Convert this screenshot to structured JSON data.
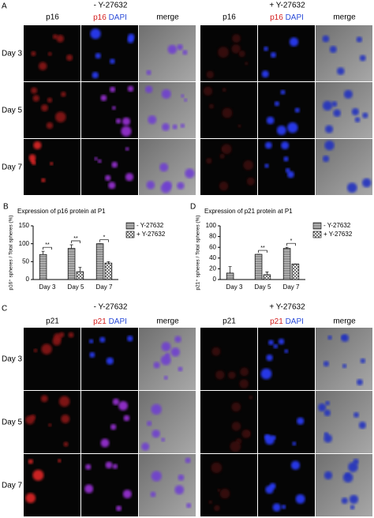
{
  "panel_a": {
    "letter": "A",
    "groups": [
      "- Y-27632",
      "+ Y-27632"
    ],
    "marker": "p16",
    "stain": "DAPI",
    "merge": "merge",
    "days": [
      "Day 3",
      "Day 5",
      "Day 7"
    ]
  },
  "panel_c": {
    "letter": "C",
    "groups": [
      "- Y-27632",
      "+ Y-27632"
    ],
    "marker": "p21",
    "stain": "DAPI",
    "merge": "merge",
    "days": [
      "Day 3",
      "Day 5",
      "Day 7"
    ]
  },
  "chart_data": [
    {
      "type": "bar",
      "panel": "B",
      "title": "Expression of p16 protein at P1",
      "y_label": "p16⁺ spheres / Total spheres (%)",
      "categories": [
        "Day 3",
        "Day 5",
        "Day 7"
      ],
      "series": [
        {
          "name": "- Y-27632",
          "color": "#9a9a9a",
          "pattern": "lines",
          "values": [
            70,
            87,
            100
          ],
          "errors": [
            9,
            10,
            0
          ]
        },
        {
          "name": "+ Y-27632",
          "color": "#ffffff",
          "pattern": "cross",
          "values": [
            0,
            22,
            46
          ],
          "errors": [
            0,
            12,
            4
          ]
        }
      ],
      "significance": [
        "**",
        "**",
        "*"
      ],
      "ylim": [
        0,
        150
      ],
      "yticks": [
        0,
        50,
        100,
        150
      ]
    },
    {
      "type": "bar",
      "panel": "D",
      "title": "Expression of p21 protein at P1",
      "y_label": "p21⁺ spheres / Total spheres (%)",
      "categories": [
        "Day 3",
        "Day 5",
        "Day 7"
      ],
      "series": [
        {
          "name": "- Y-27632",
          "color": "#9a9a9a",
          "pattern": "lines",
          "values": [
            12,
            47,
            58
          ],
          "errors": [
            12,
            0,
            2
          ]
        },
        {
          "name": "+ Y-27632",
          "color": "#ffffff",
          "pattern": "cross",
          "values": [
            0,
            9,
            29
          ],
          "errors": [
            0,
            5,
            0
          ]
        }
      ],
      "significance": [
        null,
        "**",
        "*"
      ],
      "ylim": [
        0,
        100
      ],
      "yticks": [
        0,
        20,
        40,
        60,
        80,
        100
      ]
    }
  ]
}
